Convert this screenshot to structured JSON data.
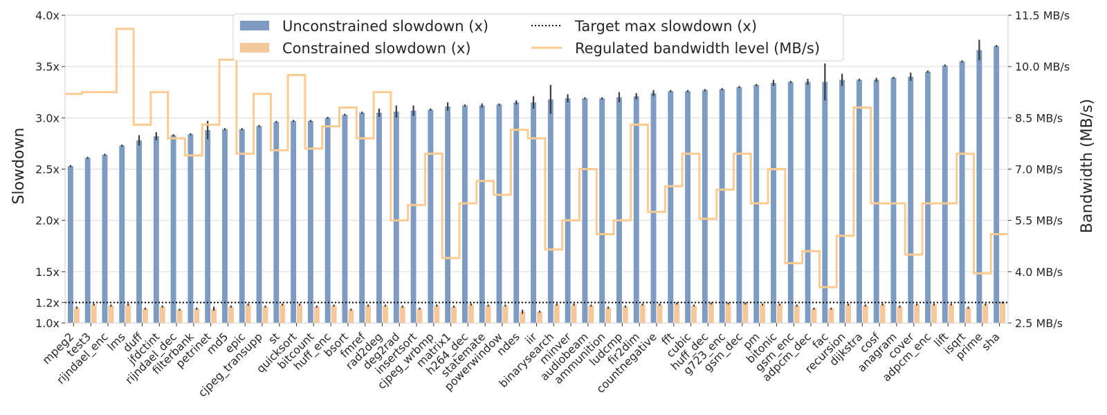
{
  "chart_data": {
    "type": "bar",
    "title": "",
    "xlabel": "",
    "ylabel": "Slowdown",
    "y2label": "Bandwidth (MB/s)",
    "ylim": [
      1.0,
      4.0
    ],
    "y2lim": [
      2.5,
      11.5
    ],
    "yticks": [
      "1.0x",
      "1.2x",
      "1.5x",
      "2.0x",
      "2.5x",
      "3.0x",
      "3.5x",
      "4.0x"
    ],
    "y2ticks": [
      "2.5 MB/s",
      "4.0 MB/s",
      "5.5 MB/s",
      "7.0 MB/s",
      "8.5 MB/s",
      "10.0 MB/s",
      "11.5 MB/s"
    ],
    "grid": true,
    "legend_position": "top-center",
    "target_max_slowdown": 1.2,
    "categories": [
      "mpeg2",
      "test3",
      "rijndael_enc",
      "lms",
      "duff",
      "jfdctint",
      "rijndael_dec",
      "filterbank",
      "petrinet",
      "md5",
      "epic",
      "cjpeg_transupp",
      "st",
      "quicksort",
      "bitcount",
      "huff_enc",
      "bsort",
      "fmref",
      "rad2deg",
      "deg2rad",
      "insertsort",
      "cjpeg_wrbmp",
      "matrix1",
      "h264_dec",
      "statemate",
      "powerwindow",
      "ndes",
      "iir",
      "binarysearch",
      "minver",
      "audiobeam",
      "ammunition",
      "ludcmp",
      "fir2dim",
      "countnegative",
      "fft",
      "cubic",
      "huff_dec",
      "g723_enc",
      "gsm_dec",
      "pm",
      "bitonic",
      "gsm_enc",
      "adpcm_dec",
      "fac",
      "recursion",
      "dijkstra",
      "cosf",
      "anagram",
      "cover",
      "adpcm_enc",
      "lift",
      "isqrt",
      "prime",
      "sha"
    ],
    "series": [
      {
        "name": "Unconstrained slowdown (x)",
        "color": "#7e9cc2",
        "values": [
          2.53,
          2.61,
          2.64,
          2.73,
          2.78,
          2.82,
          2.83,
          2.84,
          2.88,
          2.89,
          2.89,
          2.92,
          2.96,
          2.97,
          2.97,
          3.0,
          3.03,
          3.05,
          3.05,
          3.06,
          3.07,
          3.08,
          3.11,
          3.12,
          3.12,
          3.13,
          3.15,
          3.15,
          3.18,
          3.19,
          3.19,
          3.19,
          3.2,
          3.21,
          3.24,
          3.26,
          3.26,
          3.27,
          3.28,
          3.3,
          3.32,
          3.34,
          3.35,
          3.35,
          3.35,
          3.37,
          3.37,
          3.37,
          3.39,
          3.4,
          3.45,
          3.51,
          3.55,
          3.66,
          3.7
        ],
        "errors": [
          0.01,
          0.01,
          0.01,
          0.01,
          0.05,
          0.04,
          0.01,
          0.01,
          0.09,
          0.01,
          0.01,
          0.01,
          0.01,
          0.01,
          0.01,
          0.01,
          0.01,
          0.01,
          0.04,
          0.06,
          0.05,
          0.01,
          0.04,
          0.01,
          0.02,
          0.01,
          0.02,
          0.06,
          0.14,
          0.04,
          0.01,
          0.01,
          0.05,
          0.03,
          0.03,
          0.01,
          0.01,
          0.01,
          0.01,
          0.01,
          0.01,
          0.03,
          0.01,
          0.03,
          0.18,
          0.06,
          0.01,
          0.02,
          0.01,
          0.04,
          0.01,
          0.01,
          0.01,
          0.1,
          0.01
        ]
      },
      {
        "name": "Constrained slowdown (x)",
        "color": "#f5c89c",
        "values": [
          1.15,
          1.18,
          1.17,
          1.18,
          1.14,
          1.16,
          1.13,
          1.14,
          1.14,
          1.16,
          1.18,
          1.16,
          1.18,
          1.18,
          1.16,
          1.17,
          1.13,
          1.17,
          1.17,
          1.16,
          1.14,
          1.17,
          1.16,
          1.18,
          1.17,
          1.17,
          1.11,
          1.11,
          1.18,
          1.18,
          1.17,
          1.15,
          1.16,
          1.18,
          1.18,
          1.19,
          1.17,
          1.19,
          1.19,
          1.19,
          1.18,
          1.18,
          1.17,
          1.14,
          1.14,
          1.18,
          1.17,
          1.18,
          1.16,
          1.18,
          1.18,
          1.18,
          1.15,
          1.18,
          1.2
        ],
        "errors": [
          0.01,
          0.01,
          0.01,
          0.01,
          0.01,
          0.01,
          0.01,
          0.01,
          0.02,
          0.01,
          0.01,
          0.01,
          0.01,
          0.01,
          0.01,
          0.01,
          0.01,
          0.01,
          0.01,
          0.01,
          0.01,
          0.01,
          0.01,
          0.01,
          0.01,
          0.01,
          0.02,
          0.01,
          0.01,
          0.01,
          0.01,
          0.01,
          0.01,
          0.01,
          0.01,
          0.01,
          0.01,
          0.01,
          0.01,
          0.01,
          0.01,
          0.01,
          0.01,
          0.01,
          0.01,
          0.01,
          0.01,
          0.01,
          0.01,
          0.01,
          0.01,
          0.01,
          0.01,
          0.01,
          0.01
        ]
      }
    ],
    "bandwidth_series": {
      "name": "Regulated bandwidth level (MB/s)",
      "color": "#fdcb90",
      "values": [
        9.2,
        9.25,
        9.25,
        11.1,
        8.3,
        9.25,
        7.9,
        7.4,
        8.3,
        10.2,
        7.45,
        9.2,
        7.55,
        9.75,
        7.6,
        8.25,
        8.8,
        7.9,
        9.25,
        5.5,
        5.95,
        7.45,
        4.4,
        6.0,
        6.65,
        6.25,
        8.15,
        7.9,
        4.65,
        5.5,
        7.0,
        5.1,
        5.5,
        8.3,
        5.75,
        6.5,
        7.45,
        5.55,
        6.4,
        7.45,
        6.0,
        7.0,
        4.25,
        4.6,
        3.55,
        5.05,
        8.8,
        6.0,
        6.0,
        4.5,
        6.0,
        6.0,
        7.45,
        3.95,
        5.1
      ]
    },
    "legend": [
      {
        "label": "Unconstrained slowdown (x)",
        "kind": "bar",
        "color": "#7e9cc2"
      },
      {
        "label": "Constrained slowdown (x)",
        "kind": "bar",
        "color": "#f5c89c"
      },
      {
        "label": "Target max slowdown (x)",
        "kind": "dotted",
        "color": "#000000"
      },
      {
        "label": "Regulated bandwidth level (MB/s)",
        "kind": "line",
        "color": "#fdcb90"
      }
    ]
  }
}
